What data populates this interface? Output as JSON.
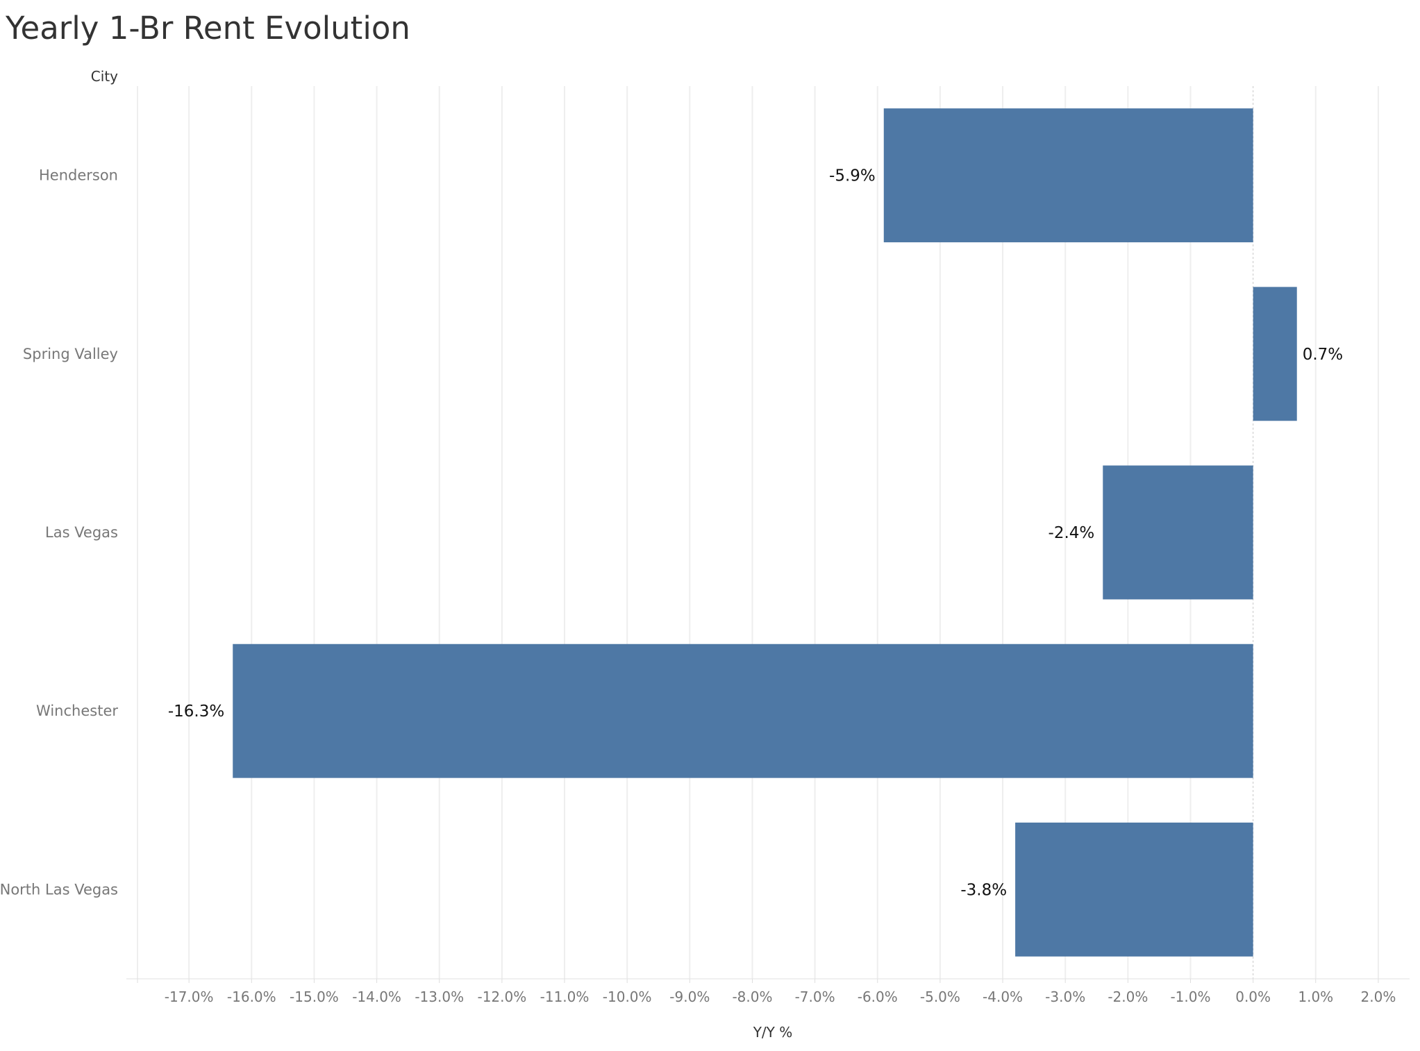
{
  "chart_data": {
    "type": "bar",
    "orientation": "horizontal",
    "title": "Yearly 1-Br Rent Evolution",
    "category_axis_label": "City",
    "value_axis_label": "Y/Y %",
    "categories": [
      "Henderson",
      "Spring Valley",
      "Las Vegas",
      "Winchester",
      "North Las Vegas"
    ],
    "values": [
      -5.9,
      0.7,
      -2.4,
      -16.3,
      -3.8
    ],
    "data_labels": [
      "-5.9%",
      "0.7%",
      "-2.4%",
      "-16.3%",
      "-3.8%"
    ],
    "xlim": [
      -18,
      2.5
    ],
    "x_ticks": [
      -17,
      -16,
      -15,
      -14,
      -13,
      -12,
      -11,
      -10,
      -9,
      -8,
      -7,
      -6,
      -5,
      -4,
      -3,
      -2,
      -1,
      0,
      1,
      2
    ],
    "x_tick_labels": [
      "-17.0%",
      "-16.0%",
      "-15.0%",
      "-14.0%",
      "-13.0%",
      "-12.0%",
      "-11.0%",
      "-10.0%",
      "-9.0%",
      "-8.0%",
      "-7.0%",
      "-6.0%",
      "-5.0%",
      "-4.0%",
      "-3.0%",
      "-2.0%",
      "-1.0%",
      "0.0%",
      "1.0%",
      "2.0%"
    ],
    "grid": true,
    "legend": "none",
    "colors": {
      "bar": "#4e78a5",
      "grid": "#eeeeee",
      "zero_line": "#c8c8c8"
    }
  }
}
